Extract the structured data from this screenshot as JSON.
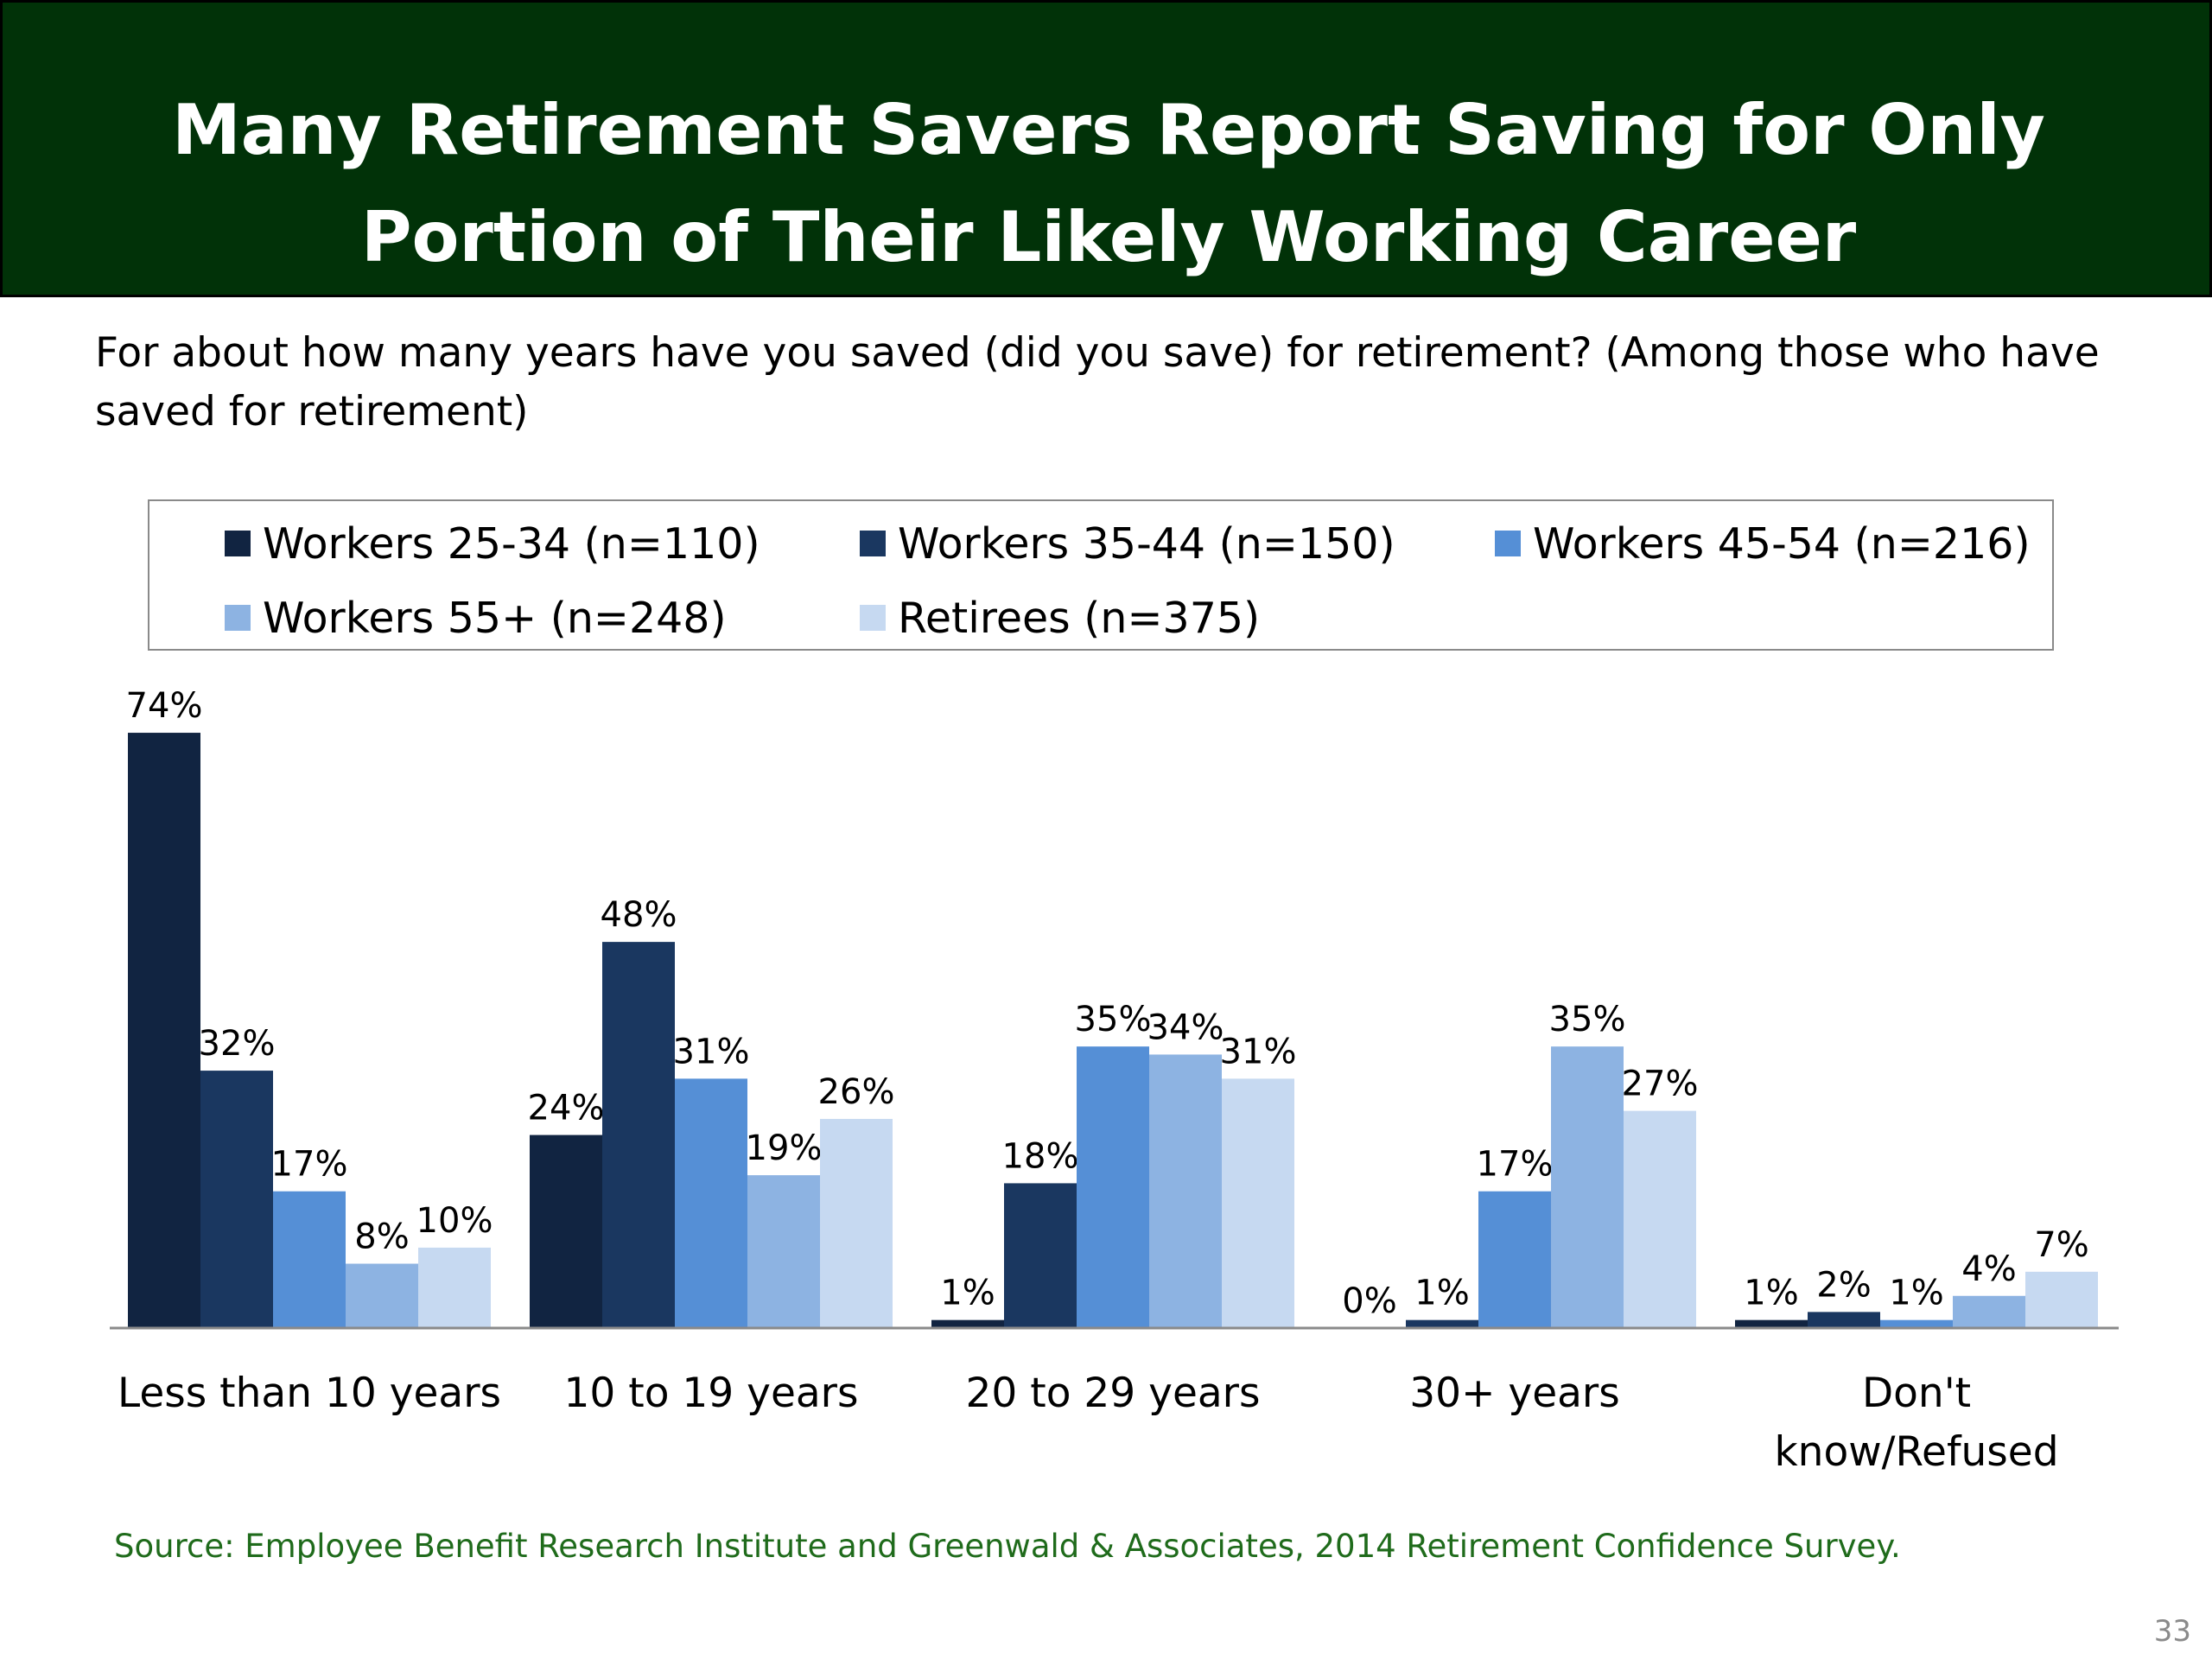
{
  "title": {
    "line1": "Many Retirement Savers Report Saving for Only",
    "line2": "Portion of Their Likely Working Career"
  },
  "subtitle": "For about how many years have you saved (did you save) for retirement? (Among those who have saved for retirement)",
  "chart_data": {
    "type": "bar",
    "categories": [
      "Less than 10 years",
      "10 to 19 years",
      "20 to 29 years",
      "30+ years",
      "Don't know/Refused"
    ],
    "series": [
      {
        "name": "Workers 25-34 (n=110)",
        "color": "#112441",
        "values": [
          74,
          24,
          1,
          0,
          1
        ]
      },
      {
        "name": "Workers 35-44 (n=150)",
        "color": "#1a3760",
        "values": [
          32,
          48,
          18,
          1,
          2
        ]
      },
      {
        "name": "Workers 45-54 (n=216)",
        "color": "#558fd6",
        "values": [
          17,
          31,
          35,
          17,
          1
        ]
      },
      {
        "name": "Workers 55+ (n=248)",
        "color": "#8db3e2",
        "values": [
          8,
          19,
          34,
          35,
          4
        ]
      },
      {
        "name": "Retirees (n=375)",
        "color": "#c6d9f1",
        "values": [
          10,
          26,
          31,
          27,
          7
        ]
      }
    ],
    "value_suffix": "%",
    "legend_position": "top",
    "grid": false
  },
  "source": "Source:  Employee Benefit Research Institute and Greenwald & Associates, 2014 Retirement Confidence Survey.",
  "page_number": "33"
}
